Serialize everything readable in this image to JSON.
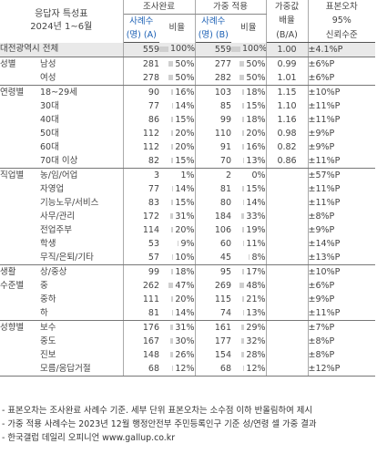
{
  "header": {
    "title_line1": "응답자 특성표",
    "title_line2": "2024년 1~6월",
    "survey_group": "조사완료",
    "weighted_group": "가중 적용",
    "weight_factor": "가중값",
    "weight_factor_2": "배율",
    "weight_factor_3": "(B/A)",
    "confidence": "표본오차",
    "confidence_2": "95%",
    "confidence_3": "신뢰수준",
    "cases_a": "사례수",
    "cases_a_2": "(명) (A)",
    "ratio": "비율",
    "cases_b": "사례수",
    "cases_b_2": "(명) (B)",
    "ratio_b": "비율"
  },
  "rows": [
    {
      "group": "대전광역시 전체",
      "label": "",
      "n": "559",
      "p": "100%",
      "wn": "559",
      "wp": "100%",
      "w": "1.00",
      "c": "±4.1%P",
      "pa": 100,
      "pb": 100,
      "total": true
    },
    {
      "group": "성별",
      "label": "남성",
      "n": "281",
      "p": "50%",
      "wn": "277",
      "wp": "50%",
      "w": "0.99",
      "c": "±6%P",
      "pa": 50,
      "pb": 50
    },
    {
      "group": "",
      "label": "여성",
      "n": "278",
      "p": "50%",
      "wn": "282",
      "wp": "50%",
      "w": "1.01",
      "c": "±6%P",
      "pa": 50,
      "pb": 50,
      "end": true
    },
    {
      "group": "연령별",
      "label": "18~29세",
      "n": "90",
      "p": "16%",
      "wn": "103",
      "wp": "18%",
      "w": "1.15",
      "c": "±10%P",
      "pa": 16,
      "pb": 18
    },
    {
      "group": "",
      "label": "30대",
      "n": "77",
      "p": "14%",
      "wn": "85",
      "wp": "15%",
      "w": "1.10",
      "c": "±11%P",
      "pa": 14,
      "pb": 15
    },
    {
      "group": "",
      "label": "40대",
      "n": "86",
      "p": "15%",
      "wn": "99",
      "wp": "18%",
      "w": "1.16",
      "c": "±11%P",
      "pa": 15,
      "pb": 18
    },
    {
      "group": "",
      "label": "50대",
      "n": "112",
      "p": "20%",
      "wn": "110",
      "wp": "20%",
      "w": "0.98",
      "c": "±9%P",
      "pa": 20,
      "pb": 20
    },
    {
      "group": "",
      "label": "60대",
      "n": "112",
      "p": "20%",
      "wn": "91",
      "wp": "16%",
      "w": "0.82",
      "c": "±9%P",
      "pa": 20,
      "pb": 16
    },
    {
      "group": "",
      "label": "70대 이상",
      "n": "82",
      "p": "15%",
      "wn": "70",
      "wp": "13%",
      "w": "0.86",
      "c": "±11%P",
      "pa": 15,
      "pb": 13,
      "end": true
    },
    {
      "group": "직업별",
      "label": "농/임/어업",
      "n": "3",
      "p": "1%",
      "wn": "2",
      "wp": "0%",
      "w": "",
      "c": "±57%P",
      "pa": 1,
      "pb": 0
    },
    {
      "group": "",
      "label": "자영업",
      "n": "77",
      "p": "14%",
      "wn": "81",
      "wp": "15%",
      "w": "",
      "c": "±11%P",
      "pa": 14,
      "pb": 15
    },
    {
      "group": "",
      "label": "기능노무/서비스",
      "n": "83",
      "p": "15%",
      "wn": "80",
      "wp": "14%",
      "w": "",
      "c": "±11%P",
      "pa": 15,
      "pb": 14
    },
    {
      "group": "",
      "label": "사무/관리",
      "n": "172",
      "p": "31%",
      "wn": "184",
      "wp": "33%",
      "w": "",
      "c": "±8%P",
      "pa": 31,
      "pb": 33
    },
    {
      "group": "",
      "label": "전업주부",
      "n": "114",
      "p": "20%",
      "wn": "106",
      "wp": "19%",
      "w": "",
      "c": "±9%P",
      "pa": 20,
      "pb": 19
    },
    {
      "group": "",
      "label": "학생",
      "n": "53",
      "p": "9%",
      "wn": "60",
      "wp": "11%",
      "w": "",
      "c": "±14%P",
      "pa": 9,
      "pb": 11
    },
    {
      "group": "",
      "label": "무직/은퇴/기타",
      "n": "57",
      "p": "10%",
      "wn": "45",
      "wp": "8%",
      "w": "",
      "c": "±13%P",
      "pa": 10,
      "pb": 8,
      "end": true
    },
    {
      "group": "생활",
      "label": "상/중상",
      "n": "99",
      "p": "18%",
      "wn": "95",
      "wp": "17%",
      "w": "",
      "c": "±10%P",
      "pa": 18,
      "pb": 17
    },
    {
      "group": "수준별",
      "label": "중",
      "n": "262",
      "p": "47%",
      "wn": "269",
      "wp": "48%",
      "w": "",
      "c": "±6%P",
      "pa": 47,
      "pb": 48
    },
    {
      "group": "",
      "label": "중하",
      "n": "111",
      "p": "20%",
      "wn": "115",
      "wp": "21%",
      "w": "",
      "c": "±9%P",
      "pa": 20,
      "pb": 21
    },
    {
      "group": "",
      "label": "하",
      "n": "81",
      "p": "14%",
      "wn": "74",
      "wp": "13%",
      "w": "",
      "c": "±11%P",
      "pa": 14,
      "pb": 13,
      "end": true
    },
    {
      "group": "성향별",
      "label": "보수",
      "n": "176",
      "p": "31%",
      "wn": "161",
      "wp": "29%",
      "w": "",
      "c": "±7%P",
      "pa": 31,
      "pb": 29
    },
    {
      "group": "",
      "label": "중도",
      "n": "167",
      "p": "30%",
      "wn": "177",
      "wp": "32%",
      "w": "",
      "c": "±8%P",
      "pa": 30,
      "pb": 32
    },
    {
      "group": "",
      "label": "진보",
      "n": "148",
      "p": "26%",
      "wn": "154",
      "wp": "28%",
      "w": "",
      "c": "±8%P",
      "pa": 26,
      "pb": 28
    },
    {
      "group": "",
      "label": "모름/응답거절",
      "n": "68",
      "p": "12%",
      "wn": "68",
      "wp": "12%",
      "w": "",
      "c": "±12%P",
      "pa": 12,
      "pb": 12,
      "end": true
    }
  ],
  "notes": [
    "- 표본오차는 조사완료 사례수 기준. 세부 단위 표본오차는 소수점 이하 반올림하여 제시",
    "- 가중 적용 사례수는 2023년 12월 행정안전부 주민등록인구 기준 성/연령 셀 가중 결과",
    "- 한국갤럽 데일리 오피니언 www.gallup.co.kr"
  ]
}
